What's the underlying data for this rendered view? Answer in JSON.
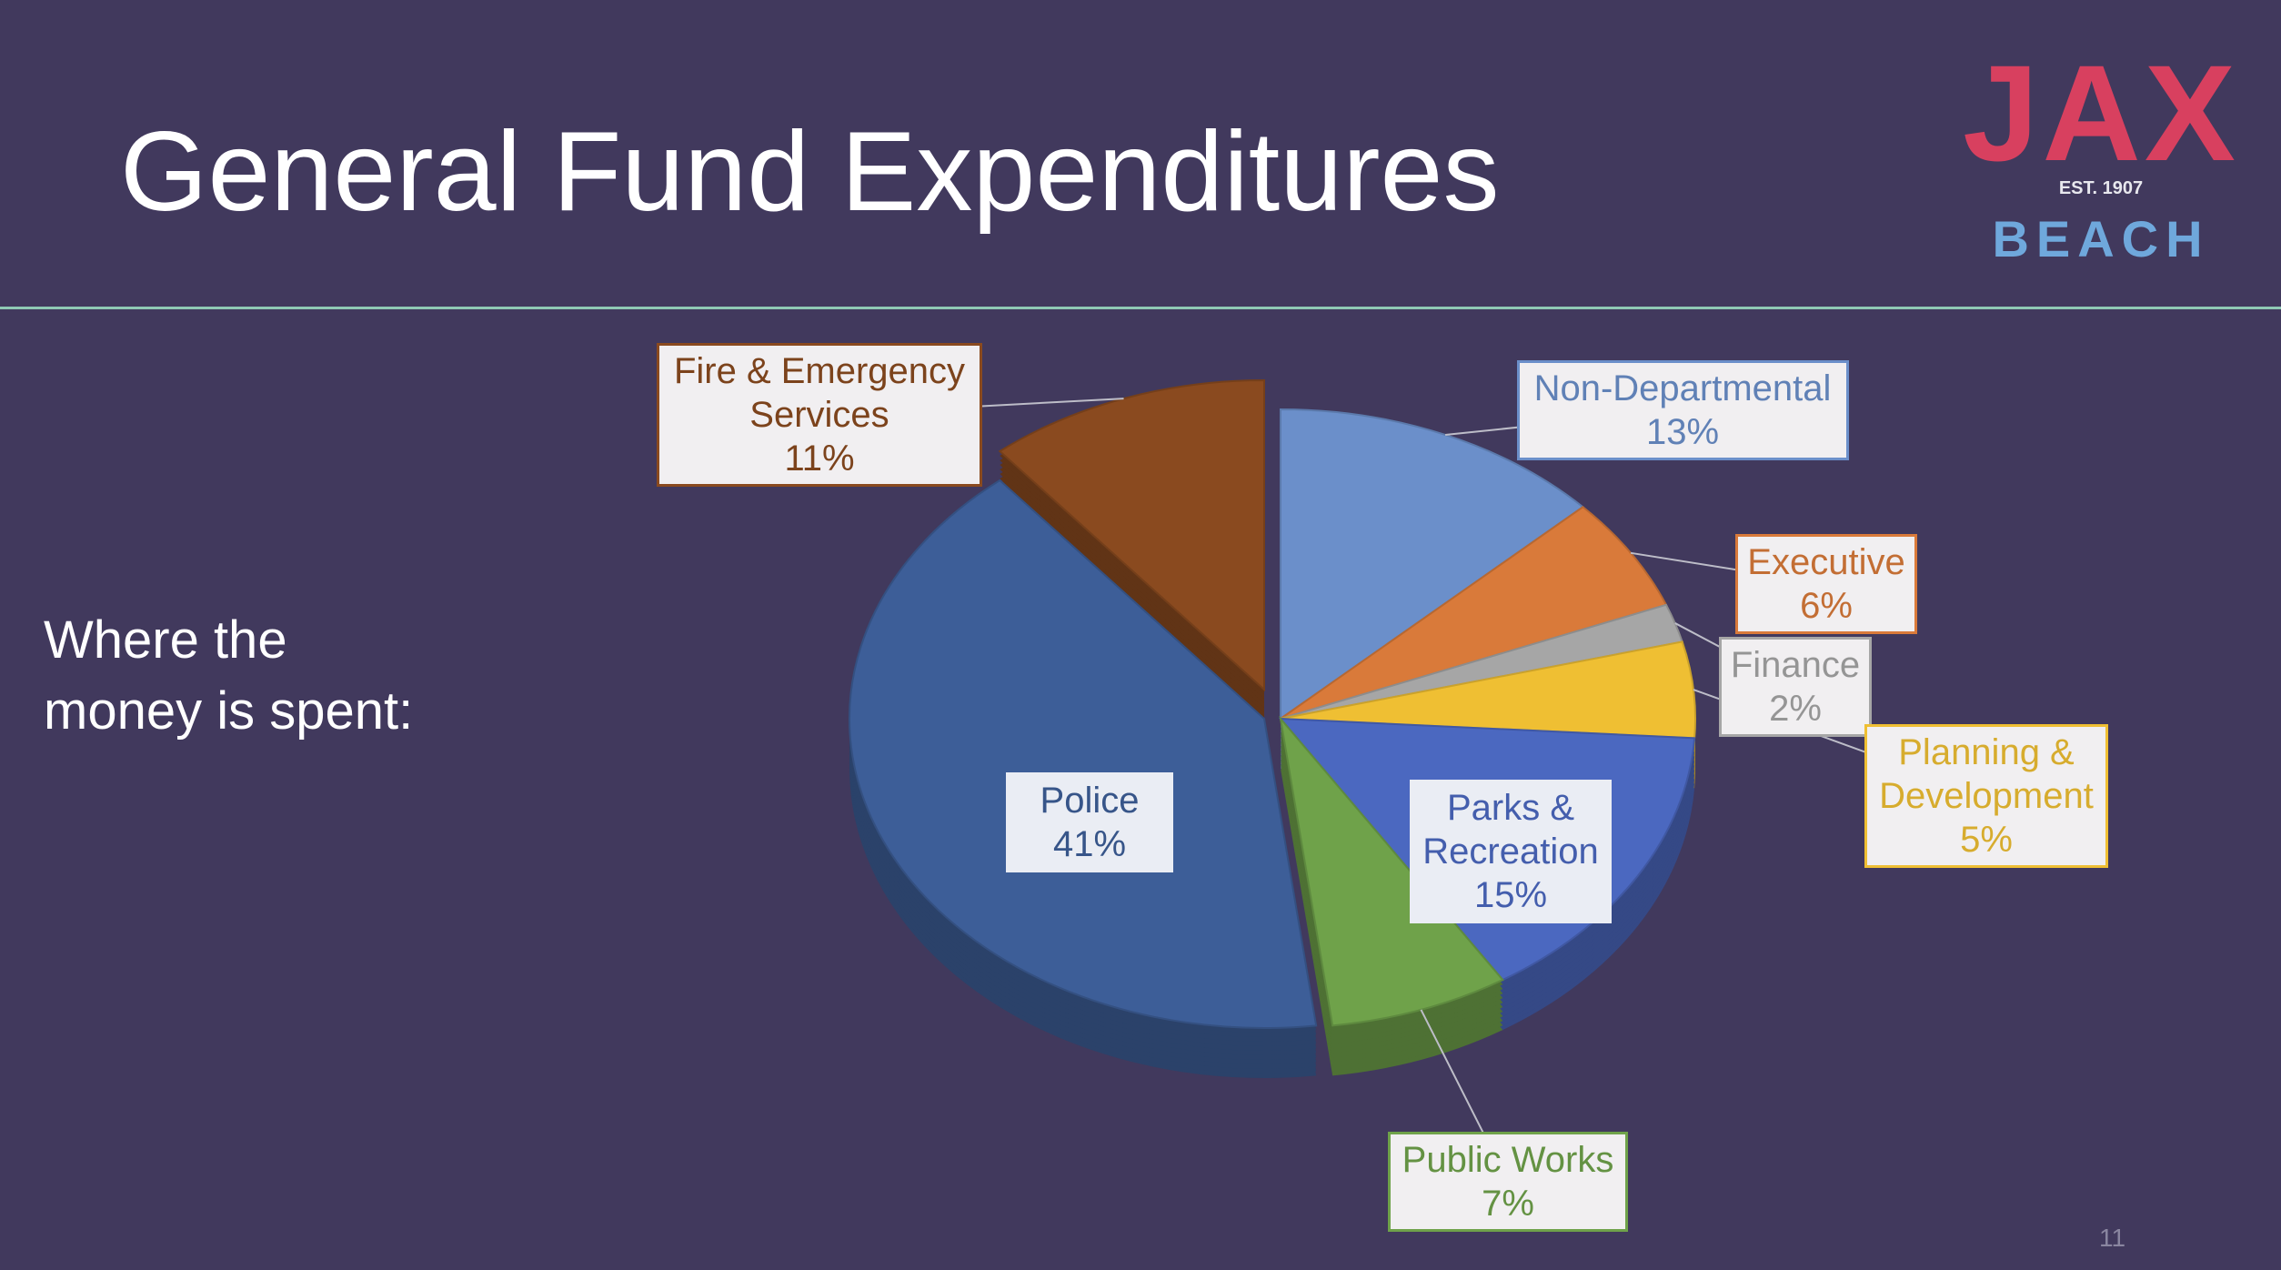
{
  "slide": {
    "title": "General Fund Expenditures",
    "caption": "Where the money is spent:",
    "page_number": 11
  },
  "logo": {
    "name": "JAX",
    "established": "EST. 1907",
    "place": "BEACH"
  },
  "chart_data": {
    "type": "pie",
    "categories": [
      "Non-Departmental",
      "Executive",
      "Finance",
      "Planning & Development",
      "Parks & Recreation",
      "Public Works",
      "Police",
      "Fire & Emergency Services"
    ],
    "values": [
      13,
      6,
      2,
      5,
      15,
      7,
      41,
      11
    ],
    "value_labels": [
      "13%",
      "6%",
      "2%",
      "5%",
      "15%",
      "7%",
      "41%",
      "11%"
    ],
    "colors": [
      "#6b8fca",
      "#d97a3a",
      "#a6a6a6",
      "#efbf33",
      "#4b68c0",
      "#6fa24a",
      "#3d5e98",
      "#8a4a1f"
    ]
  }
}
